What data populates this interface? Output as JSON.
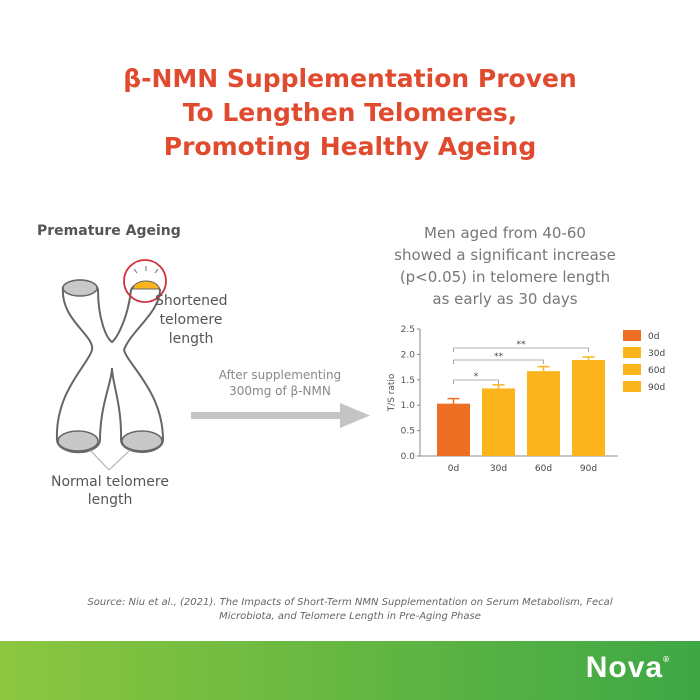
{
  "title": [
    "β-NMN Supplementation Proven",
    "To Lengthen Telomeres,",
    "Promoting Healthy Ageing"
  ],
  "illustration": {
    "heading": "Premature Ageing",
    "shortened_label": "Shortened telomere length",
    "normal_label": "Normal telomere length",
    "arrow_label": [
      "After supplementing",
      "300mg of β-NMN"
    ]
  },
  "finding": [
    "Men aged from 40-60",
    "showed a significant increase",
    "(p<0.05) in telomere length",
    "as early as 30 days"
  ],
  "chart_data": {
    "type": "bar",
    "title": "",
    "xlabel": "",
    "ylabel": "T/S ratio",
    "categories": [
      "0d",
      "30d",
      "60d",
      "90d"
    ],
    "values": [
      1.03,
      1.33,
      1.67,
      1.89
    ],
    "errors": [
      0.1,
      0.07,
      0.09,
      0.06
    ],
    "ylim": [
      0,
      2.5
    ],
    "yticks": [
      "0.0",
      "0.5",
      "1.0",
      "1.5",
      "2.0",
      "2.5"
    ],
    "grid": false,
    "legend": {
      "placement": "right",
      "entries": [
        "0d",
        "30d",
        "60d",
        "90d"
      ]
    },
    "colors": [
      "#ee6f24",
      "#fbb41c",
      "#fbb41c",
      "#fbb41c"
    ],
    "comparisons": [
      {
        "from": "0d",
        "to": "30d",
        "label": "*"
      },
      {
        "from": "0d",
        "to": "60d",
        "label": "**"
      },
      {
        "from": "0d",
        "to": "90d",
        "label": "**"
      }
    ]
  },
  "source": [
    "Source: Niu et al., (2021). The Impacts of Short-Term NMN Supplementation on Serum Metabolism, Fecal",
    "Microbiota, and Telomere Length in Pre-Aging Phase"
  ],
  "brand": {
    "name": "Nova",
    "mark": "®"
  }
}
